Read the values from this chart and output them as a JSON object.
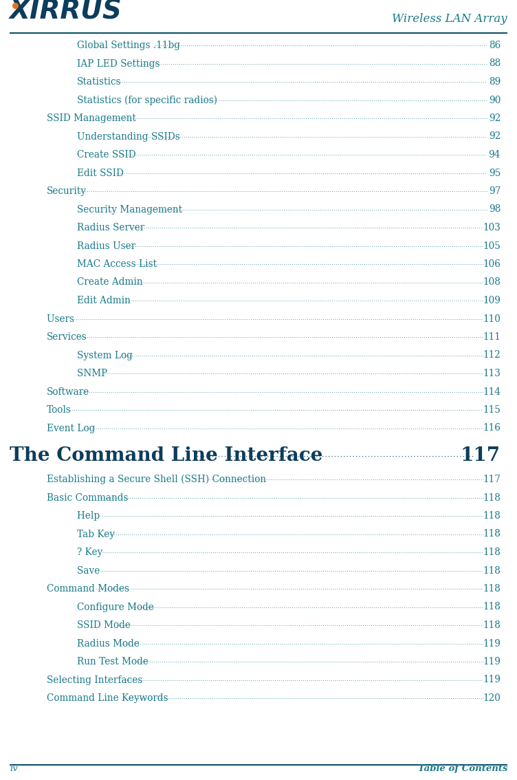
{
  "header_right": "Wireless LAN Array",
  "footer_left": "iv",
  "footer_right": "Table of Contents",
  "toc_color": "#1a7a8a",
  "header_color": "#0d4f6e",
  "dark_blue": "#0d3d5c",
  "line_color": "#0d4f6e",
  "bg_color": "#ffffff",
  "entries": [
    {
      "text": "Global Settings .11bg",
      "page": "86",
      "indent": 2
    },
    {
      "text": "IAP LED Settings ",
      "page": "88",
      "indent": 2
    },
    {
      "text": "Statistics",
      "page": "89",
      "indent": 2
    },
    {
      "text": "Statistics (for specific radios)",
      "page": "90",
      "indent": 2
    },
    {
      "text": "SSID Management ",
      "page": "92",
      "indent": 1
    },
    {
      "text": "Understanding SSIDs",
      "page": "92",
      "indent": 2
    },
    {
      "text": "Create SSID",
      "page": "94",
      "indent": 2
    },
    {
      "text": "Edit SSID ",
      "page": "95",
      "indent": 2
    },
    {
      "text": "Security",
      "page": "97",
      "indent": 1
    },
    {
      "text": "Security Management ",
      "page": "98",
      "indent": 2
    },
    {
      "text": "Radius Server ",
      "page": "103",
      "indent": 2
    },
    {
      "text": "Radius User ",
      "page": "105",
      "indent": 2
    },
    {
      "text": "MAC Access List",
      "page": "106",
      "indent": 2
    },
    {
      "text": "Create Admin ",
      "page": "108",
      "indent": 2
    },
    {
      "text": "Edit Admin  ",
      "page": "109",
      "indent": 2
    },
    {
      "text": "Users ",
      "page": "110",
      "indent": 1
    },
    {
      "text": "Services",
      "page": "111",
      "indent": 1
    },
    {
      "text": "System Log ",
      "page": "112",
      "indent": 2
    },
    {
      "text": "SNMP ",
      "page": "113",
      "indent": 2
    },
    {
      "text": "Software",
      "page": "114",
      "indent": 1
    },
    {
      "text": "Tools",
      "page": "115",
      "indent": 1
    },
    {
      "text": "Event Log ",
      "page": "116",
      "indent": 1
    }
  ],
  "section_heading": "The Command Line Interface",
  "section_page": "117",
  "sub_entries": [
    {
      "text": "Establishing a Secure Shell (SSH) Connection ",
      "page": "117",
      "indent": 1
    },
    {
      "text": "Basic Commands",
      "page": "118",
      "indent": 1
    },
    {
      "text": "Help ",
      "page": "118",
      "indent": 2
    },
    {
      "text": "Tab Key",
      "page": "118",
      "indent": 2
    },
    {
      "text": "? Key ",
      "page": "118",
      "indent": 2
    },
    {
      "text": "Save ",
      "page": "118",
      "indent": 2
    },
    {
      "text": "Command Modes",
      "page": "118",
      "indent": 1
    },
    {
      "text": "Configure Mode ",
      "page": "118",
      "indent": 2
    },
    {
      "text": "SSID Mode ",
      "page": "118",
      "indent": 2
    },
    {
      "text": "Radius Mode",
      "page": "119",
      "indent": 2
    },
    {
      "text": "Run Test Mode ",
      "page": "119",
      "indent": 2
    },
    {
      "text": "Selecting Interfaces ",
      "page": "119",
      "indent": 1
    },
    {
      "text": "Command Line Keywords ",
      "page": "120",
      "indent": 1
    }
  ]
}
